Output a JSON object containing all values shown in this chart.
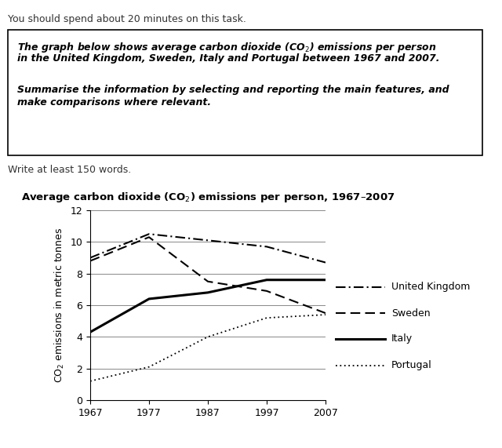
{
  "title_chart": "Average carbon dioxide (CO$_2$) emissions per person, 1967–2007",
  "ylabel": "CO$_2$ emissions in metric tonnes",
  "years": [
    1967,
    1977,
    1987,
    1997,
    2007
  ],
  "uk": [
    9.0,
    10.5,
    10.1,
    9.7,
    8.7
  ],
  "sweden": [
    8.8,
    10.3,
    7.5,
    6.9,
    5.5
  ],
  "italy": [
    4.3,
    6.4,
    6.8,
    7.6,
    7.6
  ],
  "portugal": [
    1.2,
    2.1,
    4.0,
    5.2,
    5.4
  ],
  "ylim": [
    0,
    12
  ],
  "yticks": [
    0,
    2,
    4,
    6,
    8,
    10,
    12
  ],
  "header_text": "You should spend about 20 minutes on this task.",
  "box_line1": "The graph below shows average carbon dioxide (CO$_2$) emissions per person",
  "box_line2": "in the United Kingdom, Sweden, Italy and Portugal between 1967 and 2007.",
  "box_line3": "Summarise the information by selecting and reporting the main features, and",
  "box_line4": "make comparisons where relevant.",
  "footer_text": "Write at least 150 words.",
  "legend_labels": [
    "United Kingdom",
    "Sweden",
    "Italy",
    "Portugal"
  ],
  "grid_color": "#888888",
  "background": "#ffffff",
  "text_color": "#000000"
}
